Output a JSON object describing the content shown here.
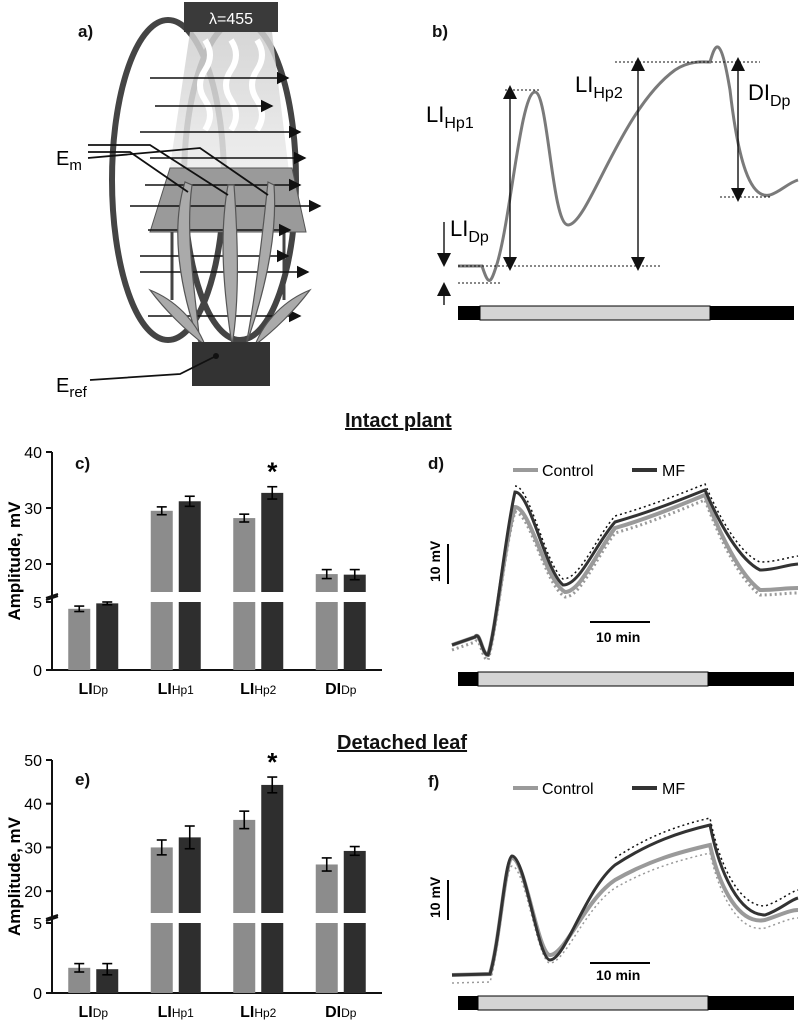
{
  "panels": {
    "a": {
      "label": "a)"
    },
    "b": {
      "label": "b)"
    },
    "c": {
      "label": "c)"
    },
    "d": {
      "label": "d)"
    },
    "e": {
      "label": "e)"
    },
    "f": {
      "label": "f)"
    }
  },
  "illustration": {
    "lamp_label": "λ=455",
    "electrode_measuring": "E",
    "electrode_measuring_sub": "m",
    "electrode_reference": "E",
    "electrode_reference_sub": "ref"
  },
  "schematic": {
    "labels": [
      {
        "main": "LI",
        "sub": "Hp1"
      },
      {
        "main": "LI",
        "sub": "Hp2"
      },
      {
        "main": "DI",
        "sub": "Dp"
      },
      {
        "main": "LI",
        "sub": "Dp"
      }
    ]
  },
  "sections": {
    "intact": "Intact plant",
    "detached": "Detached leaf"
  },
  "traces": {
    "legend": [
      "Control",
      "MF"
    ],
    "scale_v": "10 mV",
    "scale_t": "10 min",
    "colors": {
      "control": "#9a9a9a",
      "mf": "#333333"
    }
  },
  "chart_data": [
    {
      "type": "bar",
      "panel": "c",
      "ylabel": "Amplitude, mV",
      "categories": [
        {
          "main": "LI",
          "sub": "Dp"
        },
        {
          "main": "LI",
          "sub": "Hp1"
        },
        {
          "main": "LI",
          "sub": "Hp2"
        },
        {
          "main": "DI",
          "sub": "Dp"
        }
      ],
      "series": [
        {
          "values": [
            4.5,
            29.5,
            28.2,
            18.2
          ],
          "errors": [
            0.2,
            0.7,
            0.7,
            0.8
          ],
          "color": "#8c8c8c"
        },
        {
          "values": [
            4.9,
            31.2,
            32.7,
            18.1
          ],
          "errors": [
            0.1,
            0.9,
            1.1,
            0.9
          ],
          "color": "#2e2e2e"
        }
      ],
      "axis_break": {
        "lower": [
          0,
          5
        ],
        "upper": [
          15,
          40
        ]
      },
      "yticks": [
        "0",
        "5",
        "20",
        "30",
        "40"
      ],
      "annotation": {
        "text": "*",
        "category": 2
      }
    },
    {
      "type": "bar",
      "panel": "e",
      "ylabel": "Amplitude, mV",
      "categories": [
        {
          "main": "LI",
          "sub": "Dp"
        },
        {
          "main": "LI",
          "sub": "Hp1"
        },
        {
          "main": "LI",
          "sub": "Hp2"
        },
        {
          "main": "DI",
          "sub": "Dp"
        }
      ],
      "series": [
        {
          "values": [
            1.8,
            30.0,
            36.3,
            26.1
          ],
          "errors": [
            0.3,
            1.7,
            2.0,
            1.5
          ],
          "color": "#8c8c8c"
        },
        {
          "values": [
            1.7,
            32.3,
            44.3,
            29.2
          ],
          "errors": [
            0.4,
            2.6,
            1.8,
            1.0
          ],
          "color": "#2e2e2e"
        }
      ],
      "axis_break": {
        "lower": [
          0,
          5
        ],
        "upper": [
          15,
          50
        ]
      },
      "yticks": [
        "0",
        "5",
        "20",
        "30",
        "40",
        "50"
      ],
      "annotation": {
        "text": "*",
        "category": 2
      }
    }
  ]
}
